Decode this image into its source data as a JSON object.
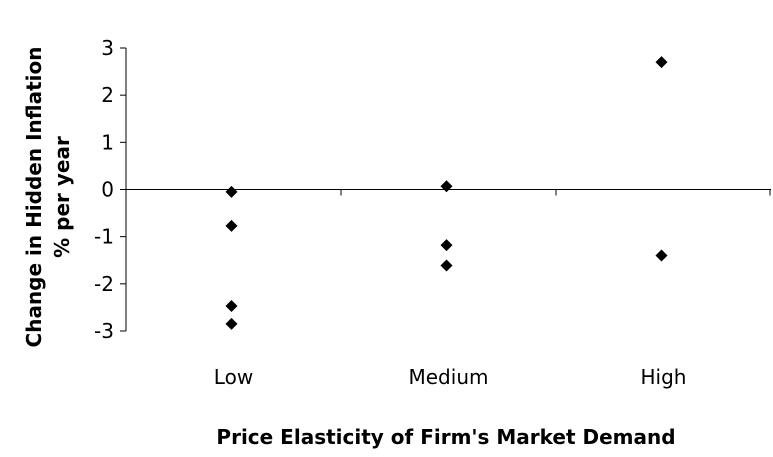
{
  "chart_data": {
    "type": "scatter",
    "title": "",
    "xlabel": "Price Elasticity of Firm's Market Demand",
    "ylabel_lines": [
      "Change in Hidden Inflation",
      "% per year"
    ],
    "categories": [
      "Low",
      "Medium",
      "High"
    ],
    "ylim": [
      -3,
      3
    ],
    "yticks": [
      3,
      2,
      1,
      0,
      -1,
      -2,
      -3
    ],
    "grid": false,
    "legend": "none",
    "marker": "diamond",
    "marker_color": "#000000",
    "series": [
      {
        "points": [
          {
            "category": "Low",
            "y": -0.05
          },
          {
            "category": "Low",
            "y": -0.77
          },
          {
            "category": "Low",
            "y": -2.47
          },
          {
            "category": "Low",
            "y": -2.85
          },
          {
            "category": "Medium",
            "y": 0.07
          },
          {
            "category": "Medium",
            "y": -1.18
          },
          {
            "category": "Medium",
            "y": -1.61
          },
          {
            "category": "High",
            "y": 2.7
          },
          {
            "category": "High",
            "y": -1.4
          }
        ]
      }
    ]
  }
}
